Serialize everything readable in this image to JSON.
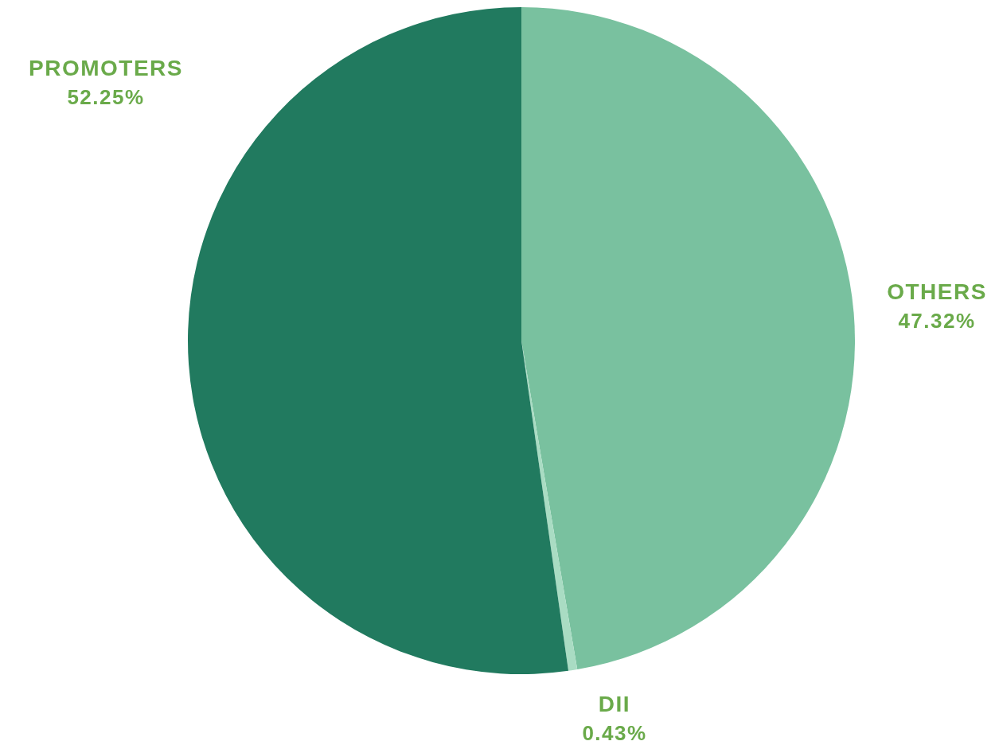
{
  "chart_data": {
    "type": "pie",
    "categories": [
      "OTHERS",
      "DII",
      "PROMOTERS"
    ],
    "values": [
      47.32,
      0.43,
      52.25
    ],
    "colors": [
      "#79c19f",
      "#a9dcc3",
      "#217a5f"
    ],
    "value_labels": [
      "47.32%",
      "0.43%",
      "52.25%"
    ],
    "legend": false
  }
}
